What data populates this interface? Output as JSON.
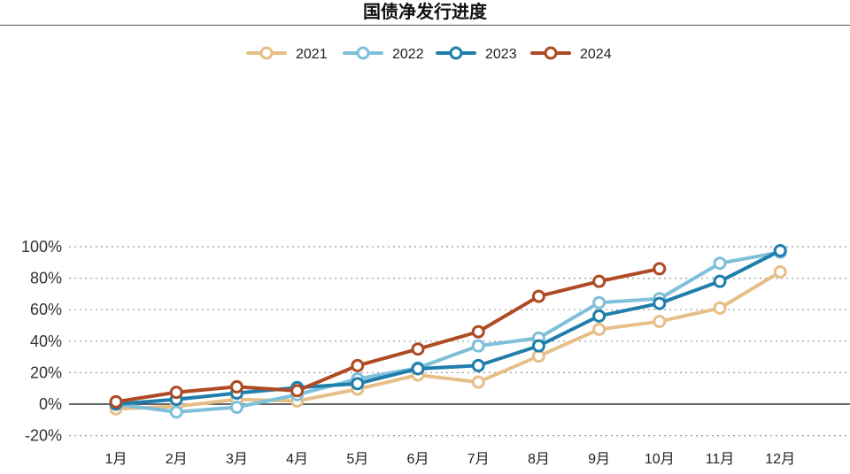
{
  "chart_data": {
    "type": "line",
    "title": "国债净发行进度",
    "categories": [
      "1月",
      "2月",
      "3月",
      "4月",
      "5月",
      "6月",
      "7月",
      "8月",
      "9月",
      "10月",
      "11月",
      "12月"
    ],
    "y_ticks": [
      "100%",
      "80%",
      "60%",
      "40%",
      "20%",
      "0%",
      "-20%"
    ],
    "y_tick_values": [
      100,
      80,
      60,
      40,
      20,
      0,
      -20
    ],
    "ylim": [
      -20,
      100
    ],
    "grid": "horizontal dotted",
    "legend_position": "top-center",
    "series": [
      {
        "name": "2021",
        "color": "#E6BE87",
        "values": [
          -3,
          -1.5,
          3,
          2,
          9.5,
          18.5,
          14,
          30.5,
          47.5,
          52.5,
          61,
          84
        ]
      },
      {
        "name": "2022",
        "color": "#7EC0D9",
        "values": [
          0,
          -5,
          -2,
          6,
          16,
          23,
          37,
          42,
          64.5,
          67,
          89.5,
          96.5
        ]
      },
      {
        "name": "2023",
        "color": "#1F7EAC",
        "values": [
          0,
          3,
          7,
          10.5,
          13,
          22.5,
          24.5,
          37,
          56,
          64,
          78,
          97.5
        ]
      },
      {
        "name": "2024",
        "color": "#AE4A24",
        "values": [
          1.5,
          7.5,
          11,
          8.5,
          24.5,
          35,
          46,
          68.5,
          78,
          86,
          null,
          null
        ]
      }
    ]
  }
}
